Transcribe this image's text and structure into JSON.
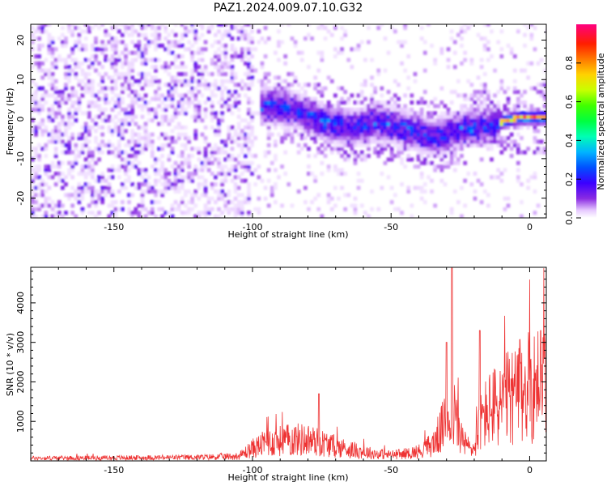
{
  "title": "PAZ1.2024.009.07.10.G32",
  "chart_data": [
    {
      "type": "heatmap",
      "xlabel": "Height of straight line (km)",
      "ylabel": "Frequency (Hz)",
      "xlim": [
        -180,
        6
      ],
      "ylim": [
        -25,
        24
      ],
      "xticks": [
        -150,
        -100,
        -50,
        0
      ],
      "yticks": [
        -20,
        -10,
        0,
        10,
        20
      ],
      "colorbar": {
        "label": "Normalized spectral amplitude",
        "range": [
          0,
          1
        ],
        "ticks": [
          "0.0",
          "0.2",
          "0.4",
          "0.6",
          "0.8"
        ],
        "colormap": "gist_rainbow_r",
        "min_color": "#ffffff",
        "max_color": "#ff0080"
      },
      "signal_track": {
        "description_values": "frequency ridge in Hz vs height in km",
        "x": [
          -95,
          -90,
          -85,
          -80,
          -75,
          -70,
          -65,
          -60,
          -55,
          -50,
          -45,
          -40,
          -35,
          -30,
          -25,
          -20,
          -15,
          -10,
          -5,
          0,
          5
        ],
        "y": [
          3,
          2.5,
          2,
          0.5,
          -1,
          -2,
          -3,
          -2,
          -1,
          -2,
          -3,
          -4,
          -5,
          -4,
          -3,
          -2.5,
          -2,
          -1,
          0,
          0,
          0
        ]
      },
      "grid": false
    },
    {
      "type": "line",
      "xlabel": "Height of straight line (km)",
      "ylabel": "SNR (10 * v/v)",
      "xlim": [
        -180,
        6
      ],
      "ylim": [
        0,
        4900
      ],
      "xticks": [
        -150,
        -100,
        -50,
        0
      ],
      "yticks": [
        1000,
        2000,
        3000,
        4000
      ],
      "series": [
        {
          "color": "#ee3333",
          "envelope_x": [
            -180,
            -150,
            -120,
            -105,
            -100,
            -95,
            -90,
            -85,
            -80,
            -75,
            -70,
            -65,
            -60,
            -55,
            -50,
            -45,
            -40,
            -35,
            -32,
            -30,
            -28,
            -26,
            -24,
            -22,
            -20,
            -18,
            -15,
            -10,
            -5,
            0,
            6
          ],
          "envelope_y": [
            100,
            110,
            130,
            170,
            450,
            650,
            720,
            780,
            760,
            650,
            520,
            420,
            330,
            250,
            220,
            260,
            340,
            600,
            1100,
            1500,
            1900,
            1300,
            700,
            500,
            420,
            1400,
            1800,
            2100,
            2400,
            2700,
            2900
          ],
          "spikes": [
            {
              "x": -76,
              "y": 1700
            },
            {
              "x": -28,
              "y": 4880
            },
            {
              "x": -30,
              "y": 3000
            },
            {
              "x": -18,
              "y": 3300
            },
            {
              "x": 4,
              "y": 3300
            }
          ]
        }
      ],
      "grid": false
    }
  ]
}
